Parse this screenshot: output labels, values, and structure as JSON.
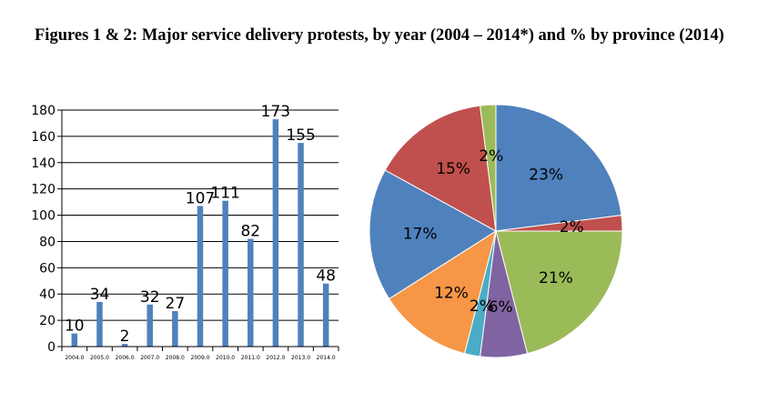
{
  "title": "Figures 1 & 2: Major service delivery protests, by year (2004 – 2014*) and % by province (2014)",
  "chart_data": [
    {
      "type": "bar",
      "categories": [
        "2004.0",
        "2005.0",
        "2006.0",
        "2007.0",
        "2008.0",
        "2009.0",
        "2010.0",
        "2011.0",
        "2012.0",
        "2013.0",
        "2014.0"
      ],
      "values": [
        10,
        34,
        2,
        32,
        27,
        107,
        111,
        82,
        173,
        155,
        48
      ],
      "data_labels": [
        "10",
        "34",
        "2",
        "32",
        "27",
        "107",
        "111",
        "82",
        "173",
        "155",
        "48"
      ],
      "ylim": [
        0,
        180
      ],
      "yticks": [
        "0",
        "20",
        "40",
        "60",
        "80",
        "100",
        "120",
        "140",
        "160",
        "180"
      ],
      "grid": true,
      "color": "#4f81bd",
      "xlabel": "",
      "ylabel": ""
    },
    {
      "type": "pie",
      "values": [
        23,
        2,
        21,
        6,
        2,
        12,
        17,
        15,
        2
      ],
      "labels": [
        "23%",
        "2%",
        "21%",
        "6%",
        "2%",
        "12%",
        "17%",
        "15%",
        "2%"
      ],
      "colors": [
        "#4f81bd",
        "#c0504d",
        "#9bbb59",
        "#8064a2",
        "#4bacc6",
        "#f79646",
        "#4f81bd",
        "#c0504d",
        "#9bbb59"
      ],
      "legend": "none"
    }
  ]
}
